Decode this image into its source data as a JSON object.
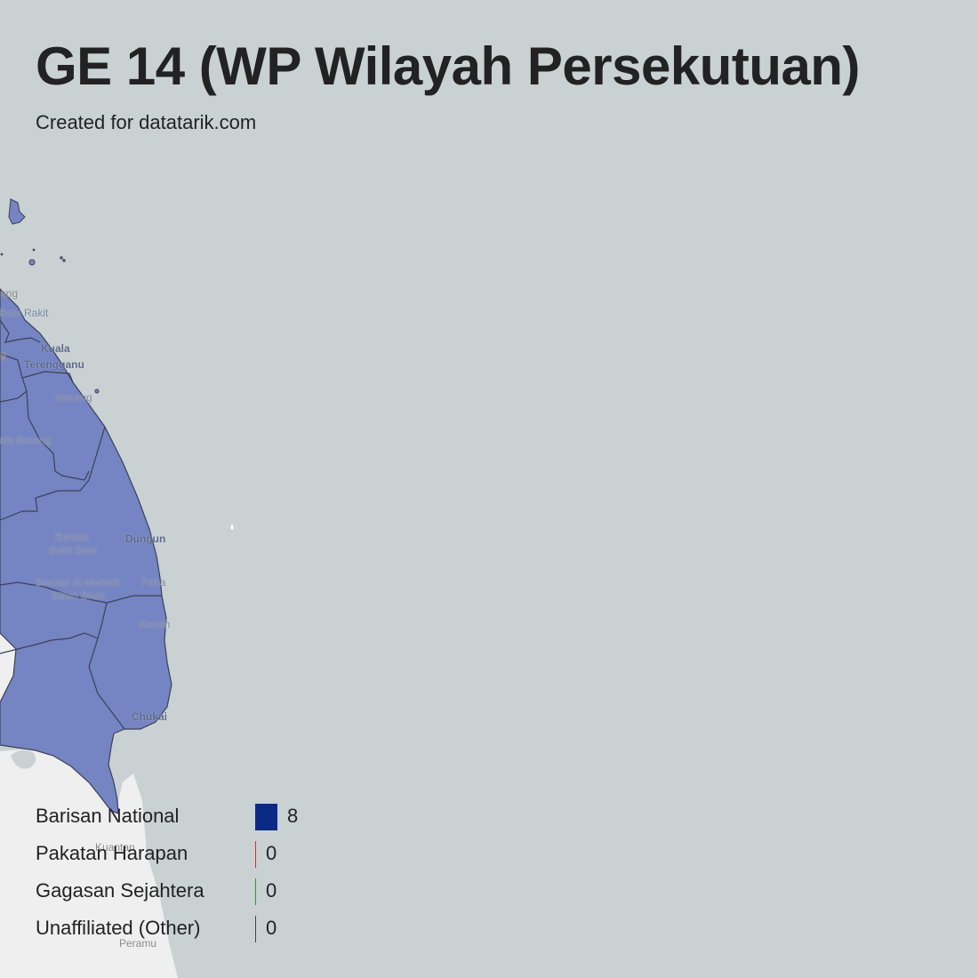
{
  "header": {
    "title": "GE 14 (WP Wilayah Persekutuan)",
    "subtitle": "Created for datatarik.com"
  },
  "map": {
    "colors": {
      "sea": "#c9d1d3",
      "land": "#efefef",
      "region_fill": "#7584c2",
      "region_border": "#3a4157"
    },
    "places": {
      "batu_rakit": "Batu Rakit",
      "kuala": "Kuala",
      "terengganu": "Terengganu",
      "marang": "Marang",
      "kuala_berang": "ala Berang",
      "bandar": "Bandar",
      "bukit_besi": "Bukit Besi",
      "dungun": "Dungun",
      "bandar_al_muktafi": "Bandar Al-Muktafi",
      "billah_shah": "Billah Shah",
      "paka": "Paka",
      "kerteh": "Kerteh",
      "chukai": "Chukai",
      "kuantan": "Kuantan",
      "peramu": "Peramu",
      "edge_top": "ang",
      "edge_left": "g"
    }
  },
  "legend": {
    "items": [
      {
        "label": "Barisan National",
        "count": "8",
        "color": "#0b2a85",
        "share": 1.0
      },
      {
        "label": "Pakatan Harapan",
        "count": "0",
        "color": "#d62a3b",
        "share": 0
      },
      {
        "label": "Gagasan Sejahtera",
        "count": "0",
        "color": "#2a9a3a",
        "share": 0
      },
      {
        "label": "Unaffiliated (Other)",
        "count": "0",
        "color": "#444444",
        "share": 0
      }
    ]
  }
}
